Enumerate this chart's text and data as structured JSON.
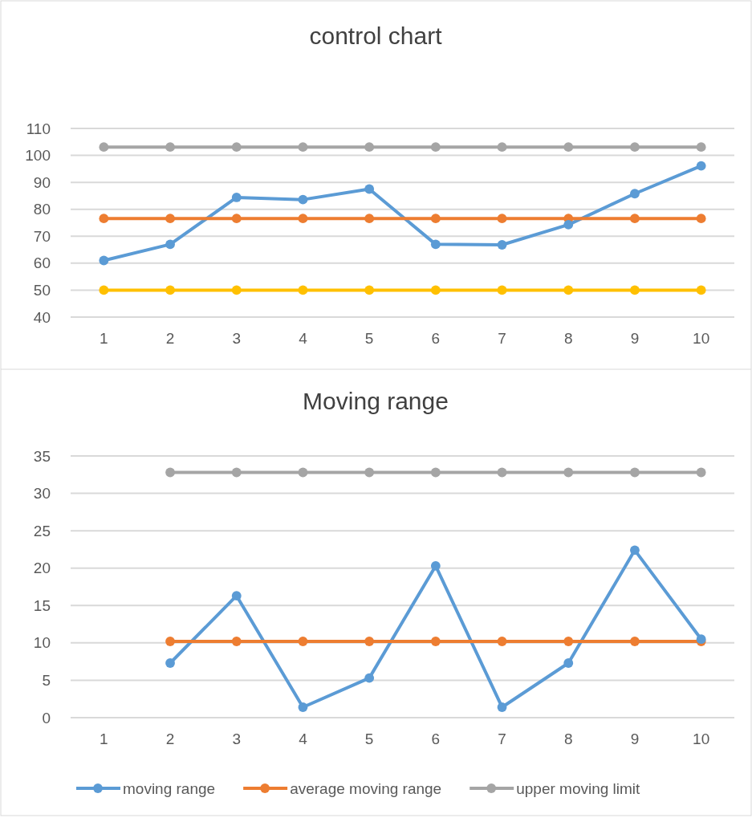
{
  "chart_data": [
    {
      "type": "line",
      "title": "control chart",
      "categories": [
        "1",
        "2",
        "3",
        "4",
        "5",
        "6",
        "7",
        "8",
        "9",
        "10"
      ],
      "ylim": [
        40,
        110
      ],
      "yticks": [
        40,
        50,
        60,
        70,
        80,
        90,
        100,
        110
      ],
      "grid": "y",
      "marker": "circle",
      "line_style": "solid",
      "series": [
        {
          "color": "#5b9bd5",
          "values": [
            61,
            67,
            84.4,
            83.6,
            87.5,
            67,
            66.8,
            74.3,
            85.8,
            96.1
          ]
        },
        {
          "color": "#ed7d31",
          "values": [
            76.6,
            76.6,
            76.6,
            76.6,
            76.6,
            76.6,
            76.6,
            76.6,
            76.6,
            76.6
          ]
        },
        {
          "color": "#a5a5a5",
          "values": [
            103.1,
            103.1,
            103.1,
            103.1,
            103.1,
            103.1,
            103.1,
            103.1,
            103.1,
            103.1
          ]
        },
        {
          "color": "#ffc000",
          "values": [
            50,
            50,
            50,
            50,
            50,
            50,
            50,
            50,
            50,
            50
          ]
        }
      ]
    },
    {
      "type": "line",
      "title": "Moving range",
      "categories": [
        "1",
        "2",
        "3",
        "4",
        "5",
        "6",
        "7",
        "8",
        "9",
        "10"
      ],
      "ylim": [
        0,
        35
      ],
      "yticks": [
        0,
        5,
        10,
        15,
        20,
        25,
        30,
        35
      ],
      "grid": "y",
      "marker": "circle",
      "line_style": "solid",
      "legend": "bottom",
      "series": [
        {
          "name": "moving range",
          "color": "#5b9bd5",
          "values": [
            null,
            7.3,
            16.3,
            1.4,
            5.3,
            20.3,
            1.4,
            7.3,
            22.4,
            10.5
          ]
        },
        {
          "name": "average  moving range",
          "color": "#ed7d31",
          "values": [
            null,
            10.2,
            10.2,
            10.2,
            10.2,
            10.2,
            10.2,
            10.2,
            10.2,
            10.2
          ]
        },
        {
          "name": "upper moving limit",
          "color": "#a5a5a5",
          "values": [
            null,
            32.8,
            32.8,
            32.8,
            32.8,
            32.8,
            32.8,
            32.8,
            32.8,
            32.8
          ]
        }
      ]
    }
  ]
}
